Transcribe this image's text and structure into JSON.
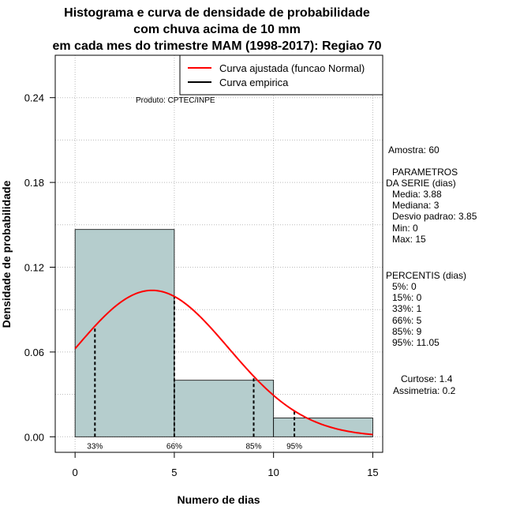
{
  "chart_data": {
    "type": "histogram",
    "title_lines": [
      "Histograma e curva de densidade de probabilidade",
      "com chuva acima de 10 mm",
      "em cada mes do trimestre MAM (1998-2017): Regiao 70"
    ],
    "xlabel": "Numero de dias",
    "ylabel": "Densidade de probabilidade",
    "xlim": [
      -1,
      15.5
    ],
    "ylim": [
      -0.011,
      0.27
    ],
    "x_ticks": [
      0,
      5,
      10,
      15
    ],
    "x_tick_labels": [
      "0",
      "5",
      "10",
      "15"
    ],
    "y_ticks": [
      0.0,
      0.06,
      0.12,
      0.18,
      0.24
    ],
    "y_tick_labels": [
      "0.00",
      "0.06",
      "0.12",
      "0.18",
      "0.24"
    ],
    "grid": true,
    "bins": [
      {
        "start": 0,
        "end": 5,
        "density": 0.1467
      },
      {
        "start": 5,
        "end": 10,
        "density": 0.04
      },
      {
        "start": 10,
        "end": 15,
        "density": 0.0133
      }
    ],
    "bar_color": "#b5cdcd",
    "normal_curve": {
      "mean": 3.88,
      "sd": 3.85,
      "color": "#ff0000",
      "x_range": [
        0,
        15
      ]
    },
    "percentile_markers": [
      {
        "x": 1,
        "label": "33%"
      },
      {
        "x": 5,
        "label": "66%"
      },
      {
        "x": 9,
        "label": "85%"
      },
      {
        "x": 11.05,
        "label": "95%"
      }
    ],
    "legend": {
      "position": "top-right",
      "entries": [
        {
          "label": "Curva ajustada (funcao Normal)",
          "color": "#ff0000"
        },
        {
          "label": "Curva empirica",
          "color": "#000000"
        }
      ]
    },
    "annotation": "Produto: CPTEC/INPE"
  },
  "stats": {
    "sample": "Amostra: 60",
    "params_title_1": "PARAMETROS",
    "params_title_2": "DA SERIE (dias)",
    "params": [
      "Media: 3.88",
      "Mediana: 3",
      "Desvio padrao: 3.85",
      "Min: 0",
      "Max: 15"
    ],
    "perc_title": "PERCENTIS (dias)",
    "percentiles": [
      "5%: 0",
      "15%: 0",
      "33%: 1",
      "66%: 5",
      "85%: 9",
      "95%: 11.05"
    ],
    "kurtosis": "Curtose: 1.4",
    "skewness": "Assimetria: 0.2"
  }
}
